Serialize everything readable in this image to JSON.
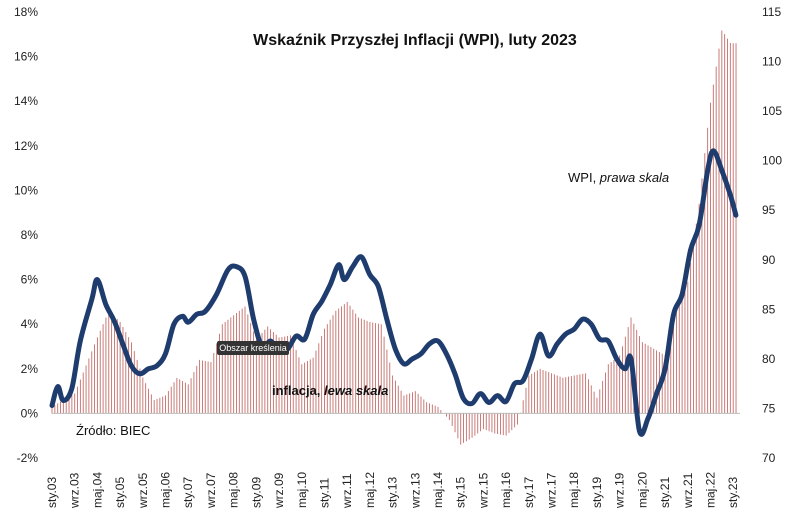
{
  "chart_data": {
    "type": "bar",
    "title": "Wskaźnik Przyszłej Inflacji (WPI), luty 2023",
    "source_label": "Źródło: BIEC",
    "tooltip": "Obszar kreślenia",
    "left_axis": {
      "ylim": [
        -2,
        18
      ],
      "ticks": [
        "-2%",
        "0%",
        "2%",
        "4%",
        "6%",
        "8%",
        "10%",
        "12%",
        "14%",
        "16%",
        "18%"
      ]
    },
    "right_axis": {
      "ylim": [
        70,
        115
      ],
      "ticks": [
        "70",
        "75",
        "80",
        "85",
        "90",
        "95",
        "100",
        "105",
        "110",
        "115"
      ]
    },
    "x_tick_labels": [
      "sty.03",
      "wrz.03",
      "maj.04",
      "sty.05",
      "wrz.05",
      "maj.06",
      "sty.07",
      "wrz.07",
      "maj.08",
      "sty.09",
      "wrz.09",
      "maj.10",
      "sty.11",
      "wrz.11",
      "maj.12",
      "sty.13",
      "wrz.13",
      "maj.14",
      "sty.15",
      "wrz.15",
      "maj.16",
      "sty.17",
      "wrz.17",
      "maj.18",
      "sty.19",
      "wrz.19",
      "maj.20",
      "sty.21",
      "wrz.21",
      "maj.22",
      "sty.23"
    ],
    "series": [
      {
        "name": "inflacja",
        "name_suffix": "lewa skala",
        "kind": "bar",
        "color": "#b85450",
        "points": [
          {
            "x": "2003.00",
            "y": 0.3
          },
          {
            "x": "2003.67",
            "y": 0.9
          },
          {
            "x": "2004.33",
            "y": 3.4
          },
          {
            "x": "2004.67",
            "y": 4.6
          },
          {
            "x": "2005.00",
            "y": 4.1
          },
          {
            "x": "2005.33",
            "y": 3.2
          },
          {
            "x": "2005.67",
            "y": 1.6
          },
          {
            "x": "2006.00",
            "y": 0.6
          },
          {
            "x": "2006.33",
            "y": 0.8
          },
          {
            "x": "2006.67",
            "y": 1.6
          },
          {
            "x": "2007.00",
            "y": 1.3
          },
          {
            "x": "2007.33",
            "y": 2.4
          },
          {
            "x": "2007.67",
            "y": 2.3
          },
          {
            "x": "2008.00",
            "y": 4.0
          },
          {
            "x": "2008.33",
            "y": 4.4
          },
          {
            "x": "2008.67",
            "y": 4.8
          },
          {
            "x": "2009.00",
            "y": 3.3
          },
          {
            "x": "2009.33",
            "y": 3.9
          },
          {
            "x": "2009.67",
            "y": 3.4
          },
          {
            "x": "2010.00",
            "y": 3.5
          },
          {
            "x": "2010.33",
            "y": 2.2
          },
          {
            "x": "2010.67",
            "y": 2.5
          },
          {
            "x": "2011.00",
            "y": 3.8
          },
          {
            "x": "2011.33",
            "y": 4.6
          },
          {
            "x": "2011.67",
            "y": 5.0
          },
          {
            "x": "2012.00",
            "y": 4.3
          },
          {
            "x": "2012.33",
            "y": 4.1
          },
          {
            "x": "2012.67",
            "y": 4.0
          },
          {
            "x": "2013.00",
            "y": 1.7
          },
          {
            "x": "2013.33",
            "y": 0.8
          },
          {
            "x": "2013.67",
            "y": 1.0
          },
          {
            "x": "2014.00",
            "y": 0.5
          },
          {
            "x": "2014.33",
            "y": 0.3
          },
          {
            "x": "2014.67",
            "y": -0.3
          },
          {
            "x": "2015.00",
            "y": -1.4
          },
          {
            "x": "2015.33",
            "y": -1.1
          },
          {
            "x": "2015.67",
            "y": -0.7
          },
          {
            "x": "2016.00",
            "y": -0.9
          },
          {
            "x": "2016.33",
            "y": -1.0
          },
          {
            "x": "2016.67",
            "y": -0.5
          },
          {
            "x": "2017.00",
            "y": 1.7
          },
          {
            "x": "2017.33",
            "y": 2.0
          },
          {
            "x": "2017.67",
            "y": 1.8
          },
          {
            "x": "2018.00",
            "y": 1.6
          },
          {
            "x": "2018.33",
            "y": 1.7
          },
          {
            "x": "2018.67",
            "y": 1.8
          },
          {
            "x": "2019.00",
            "y": 0.7
          },
          {
            "x": "2019.33",
            "y": 2.2
          },
          {
            "x": "2019.67",
            "y": 2.6
          },
          {
            "x": "2020.00",
            "y": 4.3
          },
          {
            "x": "2020.33",
            "y": 3.2
          },
          {
            "x": "2020.67",
            "y": 2.9
          },
          {
            "x": "2021.00",
            "y": 2.6
          },
          {
            "x": "2021.33",
            "y": 4.7
          },
          {
            "x": "2021.67",
            "y": 5.9
          },
          {
            "x": "2022.00",
            "y": 9.4
          },
          {
            "x": "2022.33",
            "y": 13.9
          },
          {
            "x": "2022.67",
            "y": 17.2
          },
          {
            "x": "2022.92",
            "y": 16.6
          },
          {
            "x": "2023.00",
            "y": 16.6
          }
        ]
      },
      {
        "name": "WPI",
        "name_suffix": "prawa skala",
        "kind": "line",
        "color": "#1f3c6e",
        "points": [
          {
            "x": "2003.00",
            "y": 75.3
          },
          {
            "x": "2003.17",
            "y": 77.2
          },
          {
            "x": "2003.33",
            "y": 75.8
          },
          {
            "x": "2003.58",
            "y": 77.0
          },
          {
            "x": "2003.83",
            "y": 81.8
          },
          {
            "x": "2004.17",
            "y": 86.0
          },
          {
            "x": "2004.33",
            "y": 88.0
          },
          {
            "x": "2004.58",
            "y": 85.5
          },
          {
            "x": "2004.83",
            "y": 83.8
          },
          {
            "x": "2005.08",
            "y": 81.5
          },
          {
            "x": "2005.33",
            "y": 79.3
          },
          {
            "x": "2005.58",
            "y": 78.5
          },
          {
            "x": "2005.83",
            "y": 79.0
          },
          {
            "x": "2006.08",
            "y": 79.3
          },
          {
            "x": "2006.33",
            "y": 80.5
          },
          {
            "x": "2006.58",
            "y": 83.5
          },
          {
            "x": "2006.83",
            "y": 84.3
          },
          {
            "x": "2007.00",
            "y": 83.7
          },
          {
            "x": "2007.25",
            "y": 84.5
          },
          {
            "x": "2007.50",
            "y": 84.8
          },
          {
            "x": "2007.83",
            "y": 86.5
          },
          {
            "x": "2008.17",
            "y": 89.0
          },
          {
            "x": "2008.42",
            "y": 89.3
          },
          {
            "x": "2008.67",
            "y": 88.3
          },
          {
            "x": "2008.92",
            "y": 84.0
          },
          {
            "x": "2009.17",
            "y": 81.2
          },
          {
            "x": "2009.42",
            "y": 81.8
          },
          {
            "x": "2009.67",
            "y": 80.8
          },
          {
            "x": "2009.92",
            "y": 81.0
          },
          {
            "x": "2010.17",
            "y": 82.3
          },
          {
            "x": "2010.42",
            "y": 82.0
          },
          {
            "x": "2010.67",
            "y": 84.5
          },
          {
            "x": "2010.92",
            "y": 85.8
          },
          {
            "x": "2011.17",
            "y": 87.5
          },
          {
            "x": "2011.42",
            "y": 89.5
          },
          {
            "x": "2011.58",
            "y": 88.0
          },
          {
            "x": "2011.83",
            "y": 89.3
          },
          {
            "x": "2012.08",
            "y": 90.3
          },
          {
            "x": "2012.33",
            "y": 88.5
          },
          {
            "x": "2012.58",
            "y": 87.3
          },
          {
            "x": "2012.83",
            "y": 84.0
          },
          {
            "x": "2013.08",
            "y": 81.0
          },
          {
            "x": "2013.33",
            "y": 79.5
          },
          {
            "x": "2013.58",
            "y": 80.0
          },
          {
            "x": "2013.83",
            "y": 80.5
          },
          {
            "x": "2014.08",
            "y": 81.5
          },
          {
            "x": "2014.33",
            "y": 81.8
          },
          {
            "x": "2014.58",
            "y": 80.5
          },
          {
            "x": "2014.83",
            "y": 78.5
          },
          {
            "x": "2015.08",
            "y": 76.0
          },
          {
            "x": "2015.33",
            "y": 75.5
          },
          {
            "x": "2015.58",
            "y": 76.5
          },
          {
            "x": "2015.83",
            "y": 75.6
          },
          {
            "x": "2016.08",
            "y": 76.3
          },
          {
            "x": "2016.33",
            "y": 75.7
          },
          {
            "x": "2016.58",
            "y": 77.5
          },
          {
            "x": "2016.83",
            "y": 77.8
          },
          {
            "x": "2017.08",
            "y": 80.0
          },
          {
            "x": "2017.33",
            "y": 82.5
          },
          {
            "x": "2017.58",
            "y": 80.3
          },
          {
            "x": "2017.83",
            "y": 81.5
          },
          {
            "x": "2018.08",
            "y": 82.5
          },
          {
            "x": "2018.33",
            "y": 83.0
          },
          {
            "x": "2018.58",
            "y": 84.0
          },
          {
            "x": "2018.83",
            "y": 83.5
          },
          {
            "x": "2019.08",
            "y": 82.0
          },
          {
            "x": "2019.33",
            "y": 81.8
          },
          {
            "x": "2019.58",
            "y": 80.0
          },
          {
            "x": "2019.83",
            "y": 79.0
          },
          {
            "x": "2020.00",
            "y": 80.0
          },
          {
            "x": "2020.25",
            "y": 72.7
          },
          {
            "x": "2020.50",
            "y": 74.0
          },
          {
            "x": "2020.75",
            "y": 76.5
          },
          {
            "x": "2021.00",
            "y": 79.0
          },
          {
            "x": "2021.25",
            "y": 84.5
          },
          {
            "x": "2021.50",
            "y": 86.5
          },
          {
            "x": "2021.75",
            "y": 91.0
          },
          {
            "x": "2022.00",
            "y": 93.5
          },
          {
            "x": "2022.25",
            "y": 99.0
          },
          {
            "x": "2022.42",
            "y": 101.0
          },
          {
            "x": "2022.67",
            "y": 99.0
          },
          {
            "x": "2022.92",
            "y": 96.5
          },
          {
            "x": "2023.08",
            "y": 94.5
          }
        ]
      }
    ],
    "grid": false,
    "legend": "inline labels"
  }
}
